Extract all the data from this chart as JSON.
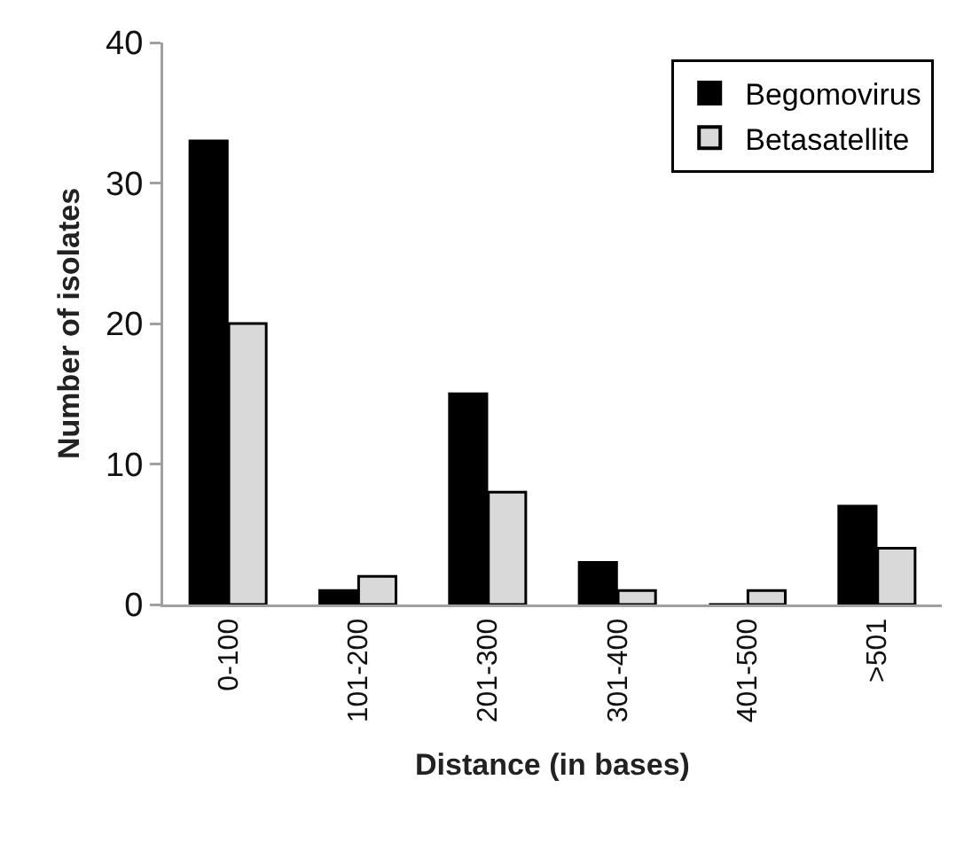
{
  "chart_data": {
    "type": "bar",
    "xlabel": "Distance (in bases)",
    "ylabel": "Number of isolates",
    "categories": [
      "0-100",
      "101-200",
      "201-300",
      "301-400",
      "401-500",
      ">501"
    ],
    "series": [
      {
        "name": "Begomovirus",
        "color": "#000000",
        "values": [
          33,
          1,
          15,
          3,
          0,
          7
        ]
      },
      {
        "name": "Betasatellite",
        "color": "#d9d9d9",
        "values": [
          20,
          2,
          8,
          1,
          1,
          4
        ]
      }
    ],
    "ylim": [
      0,
      40
    ],
    "yticks": [
      0,
      10,
      20,
      30,
      40
    ],
    "grid": false,
    "legend": "top right"
  }
}
